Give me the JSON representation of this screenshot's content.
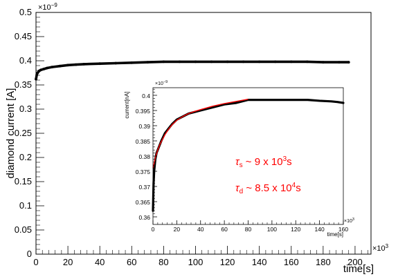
{
  "colors": {
    "data": "#000000",
    "fit": "#ff0000",
    "annotation": "#ff0000",
    "frame": "#000000",
    "background": "#ffffff"
  },
  "chart_data": [
    {
      "type": "scatter",
      "title": "",
      "xlabel": "time[s]",
      "ylabel": "diamond current [A]",
      "x_multiplier_label": "×10",
      "x_multiplier_exp": "3",
      "y_multiplier_label": "×10",
      "y_multiplier_exp": "−9",
      "xlim": [
        0,
        210
      ],
      "ylim": [
        0,
        0.5
      ],
      "xticks": [
        0,
        20,
        40,
        60,
        80,
        100,
        120,
        140,
        160,
        180,
        200
      ],
      "yticks": [
        "0",
        "0.05",
        "0.1",
        "0.15",
        "0.2",
        "0.25",
        "0.3",
        "0.35",
        "0.4",
        "0.45",
        "0.5"
      ],
      "grid": false,
      "series": [
        {
          "x": [
            0,
            0.5,
            1,
            2,
            3,
            5,
            7,
            10,
            15,
            20,
            25,
            30,
            40,
            50,
            60,
            70,
            80,
            90,
            100,
            110,
            120,
            130,
            140,
            150,
            160,
            170,
            180,
            190,
            196
          ],
          "y": [
            0.362,
            0.371,
            0.375,
            0.379,
            0.381,
            0.383,
            0.385,
            0.387,
            0.389,
            0.391,
            0.392,
            0.393,
            0.394,
            0.395,
            0.396,
            0.397,
            0.398,
            0.398,
            0.398,
            0.398,
            0.398,
            0.398,
            0.398,
            0.398,
            0.398,
            0.398,
            0.397,
            0.397,
            0.397
          ]
        }
      ]
    },
    {
      "type": "scatter",
      "title": "",
      "xlabel": "time[s]",
      "ylabel": "current[nA]",
      "x_multiplier_label": "×10",
      "x_multiplier_exp": "3",
      "y_multiplier_label": "×10",
      "y_multiplier_exp": "−9",
      "xlim": [
        0,
        160
      ],
      "ylim": [
        0.3575,
        0.4025
      ],
      "xticks": [
        0,
        20,
        40,
        60,
        80,
        100,
        120,
        140,
        160
      ],
      "yticks": [
        "0.36",
        "0.365",
        "0.37",
        "0.375",
        "0.38",
        "0.385",
        "0.39",
        "0.395",
        "0.4"
      ],
      "grid": false,
      "series": [
        {
          "x": [
            0,
            0.5,
            1,
            2,
            3,
            5,
            7,
            10,
            13,
            16,
            20,
            25,
            30,
            35,
            40,
            50,
            60,
            70,
            80,
            85,
            90,
            100,
            110,
            120,
            130,
            140,
            150,
            155,
            160
          ],
          "y": [
            0.362,
            0.371,
            0.375,
            0.379,
            0.381,
            0.383,
            0.385,
            0.3875,
            0.389,
            0.3905,
            0.392,
            0.393,
            0.394,
            0.3945,
            0.395,
            0.396,
            0.397,
            0.3975,
            0.3985,
            0.3985,
            0.3985,
            0.3985,
            0.3985,
            0.3985,
            0.3985,
            0.3982,
            0.398,
            0.3978,
            0.3975
          ]
        },
        {
          "x": [
            0,
            2,
            4,
            6,
            8,
            10,
            13,
            16,
            20,
            25,
            30,
            35,
            40,
            50,
            60,
            70,
            80
          ],
          "y": [
            0.376,
            0.3795,
            0.382,
            0.384,
            0.3855,
            0.387,
            0.3888,
            0.3903,
            0.3918,
            0.393,
            0.394,
            0.3947,
            0.3953,
            0.3964,
            0.3973,
            0.398,
            0.3987
          ]
        }
      ],
      "annotations": [
        {
          "symbol": "τ",
          "sub": "s",
          "mid": " ~ 9 x 10",
          "sup": "3",
          "unit": "s"
        },
        {
          "symbol": "τ",
          "sub": "d",
          "mid": " ~ 8.5 x 10",
          "sup": "4",
          "unit": "s"
        }
      ]
    }
  ]
}
